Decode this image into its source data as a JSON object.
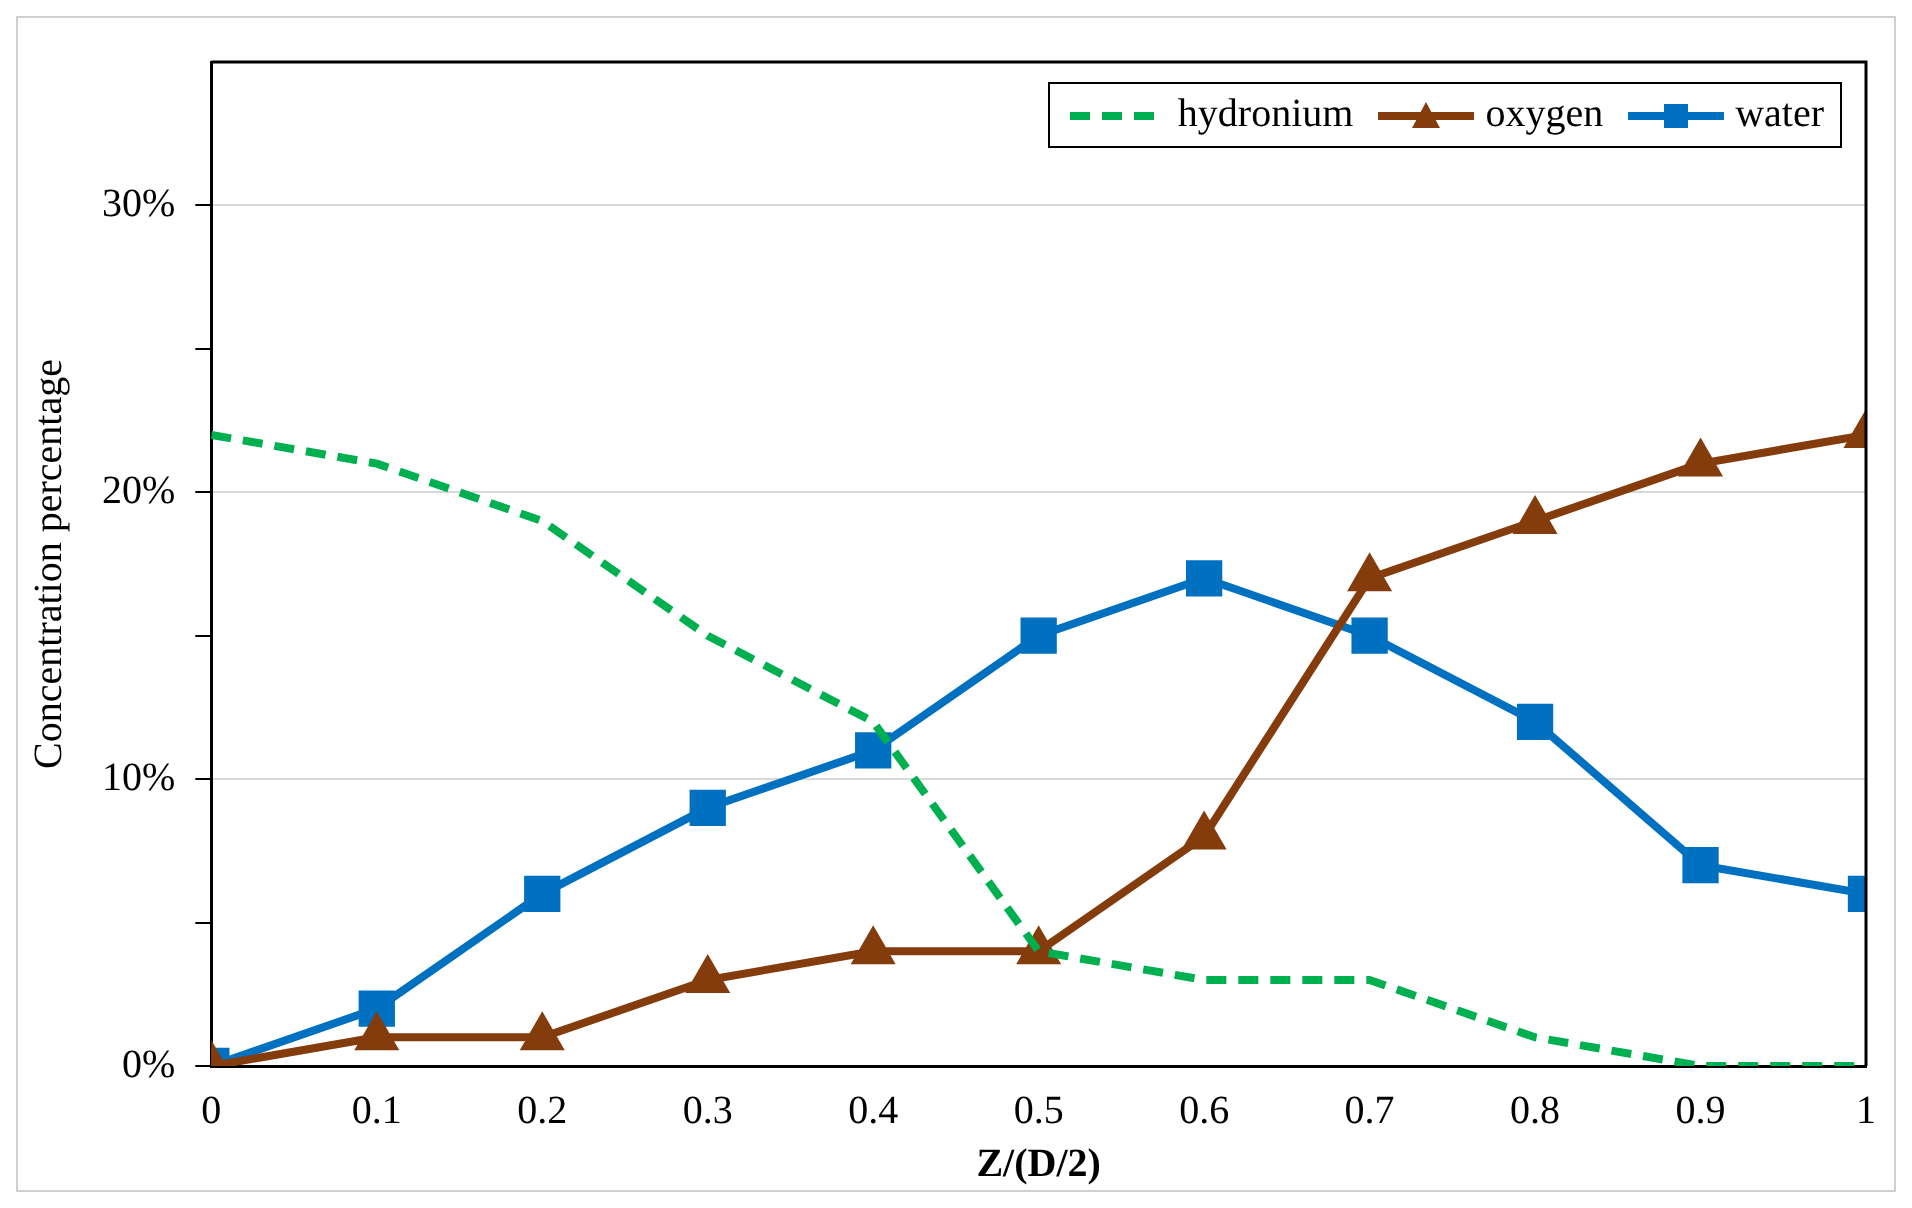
{
  "chart_data": {
    "type": "line",
    "xlabel": "Z/(D/2)",
    "ylabel": "Concentration percentage",
    "x": [
      0,
      0.1,
      0.2,
      0.3,
      0.4,
      0.5,
      0.6,
      0.7,
      0.8,
      0.9,
      1
    ],
    "xlim": [
      0,
      1
    ],
    "xticks": [
      0,
      0.1,
      0.2,
      0.3,
      0.4,
      0.5,
      0.6,
      0.7,
      0.8,
      0.9,
      1
    ],
    "ylim": [
      0,
      35
    ],
    "yticks": [
      {
        "value": 0,
        "label": "0%"
      },
      {
        "value": 5,
        "label": null
      },
      {
        "value": 10,
        "label": "10%"
      },
      {
        "value": 15,
        "label": null
      },
      {
        "value": 20,
        "label": "20%"
      },
      {
        "value": 25,
        "label": null
      },
      {
        "value": 30,
        "label": "30%"
      }
    ],
    "grid": "y",
    "legend": "top right",
    "series": [
      {
        "name": "hydronium",
        "color": "#00b050",
        "marker": "none",
        "line_style": "dashed",
        "values": [
          22,
          21,
          19,
          15,
          12,
          4,
          3,
          3,
          1,
          0,
          0
        ]
      },
      {
        "name": "oxygen",
        "color": "#843c0c",
        "marker": "triangle",
        "line_style": "solid",
        "values": [
          0,
          1,
          1,
          3,
          4,
          4,
          8,
          17,
          19,
          21,
          22
        ]
      },
      {
        "name": "water",
        "color": "#0070c0",
        "marker": "square",
        "line_style": "solid",
        "values": [
          0,
          2,
          6,
          9,
          11,
          15,
          17,
          15,
          12,
          7,
          6
        ]
      }
    ]
  }
}
